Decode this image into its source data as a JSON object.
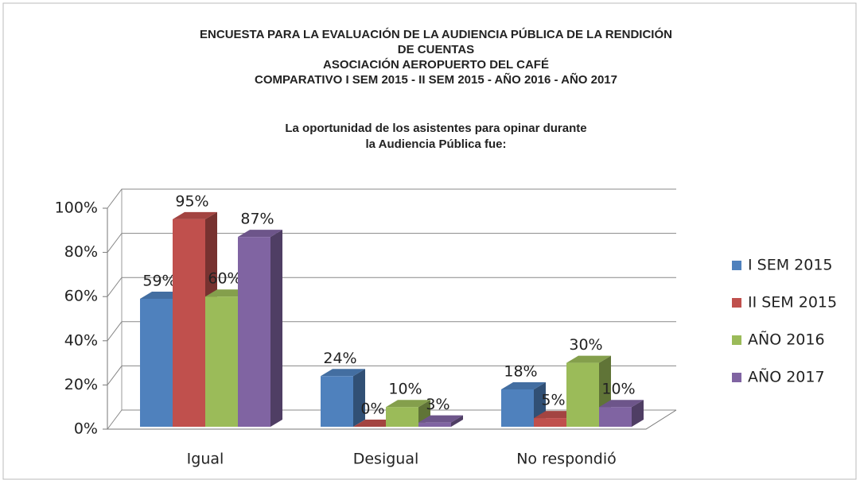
{
  "chart_data": {
    "type": "bar3d",
    "title_lines": [
      "ENCUESTA PARA LA EVALUACIÓN DE LA AUDIENCIA PÚBLICA DE LA RENDICIÓN",
      "DE CUENTAS",
      "ASOCIACIÓN AEROPUERTO DEL CAFÉ",
      "COMPARATIVO I SEM 2015 - II SEM 2015 - AÑO 2016 - AÑO 2017"
    ],
    "subtitle_lines": [
      "La oportunidad de los asistentes para opinar durante",
      "la Audiencia Pública fue:"
    ],
    "categories": [
      "Igual",
      "Desigual",
      "No respondió"
    ],
    "series": [
      {
        "name": "I SEM 2015",
        "color": "#4f81bd",
        "values": [
          59,
          24,
          18
        ],
        "value_labels": [
          "59%",
          "24%",
          "18%"
        ]
      },
      {
        "name": "II SEM 2015",
        "color": "#c0504d",
        "values": [
          95,
          0,
          5
        ],
        "value_labels": [
          "95%",
          "0%",
          "5%"
        ]
      },
      {
        "name": "AÑO 2016",
        "color": "#9bbb59",
        "values": [
          60,
          10,
          30
        ],
        "value_labels": [
          "60%",
          "10%",
          "30%"
        ]
      },
      {
        "name": "AÑO 2017",
        "color": "#8064a2",
        "values": [
          87,
          3,
          10
        ],
        "value_labels": [
          "87%",
          "3%",
          "10%"
        ]
      }
    ],
    "ylim": [
      0,
      100
    ],
    "yticks": [
      {
        "value": 0,
        "label": "0%"
      },
      {
        "value": 20,
        "label": "20%"
      },
      {
        "value": 40,
        "label": "40%"
      },
      {
        "value": 60,
        "label": "60%"
      },
      {
        "value": 80,
        "label": "80%"
      },
      {
        "value": 100,
        "label": "100%"
      }
    ],
    "grid": true,
    "legend": "right"
  }
}
